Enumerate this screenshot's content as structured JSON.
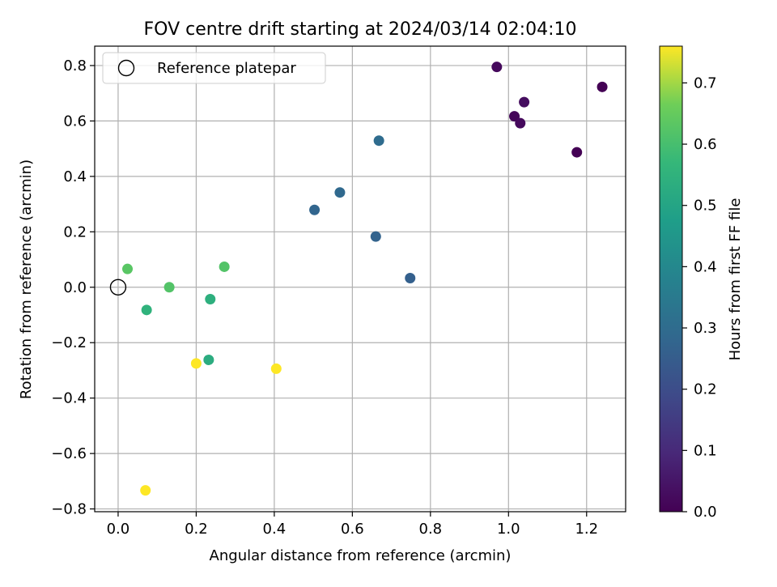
{
  "chart_data": {
    "type": "scatter",
    "title": "FOV centre drift starting at 2024/03/14 02:04:10",
    "xlabel": "Angular distance from reference (arcmin)",
    "ylabel": "Rotation from reference (arcmin)",
    "xlim": [
      -0.06,
      1.3
    ],
    "ylim": [
      -0.81,
      0.87
    ],
    "x_ticks": [
      0.0,
      0.2,
      0.4,
      0.6,
      0.8,
      1.0,
      1.2
    ],
    "x_tick_labels": [
      "0.0",
      "0.2",
      "0.4",
      "0.6",
      "0.8",
      "1.0",
      "1.2"
    ],
    "y_ticks": [
      0.8,
      0.6,
      0.4,
      0.2,
      0.0,
      -0.2,
      -0.4,
      -0.6,
      -0.8
    ],
    "y_tick_labels": [
      "0.8",
      "0.6",
      "0.4",
      "0.2",
      "0.0",
      "−0.2",
      "−0.4",
      "−0.6",
      "−0.8"
    ],
    "grid": true,
    "legend": {
      "position": "top-left",
      "entries": [
        "Reference platepar"
      ]
    },
    "reference_point": {
      "x": 0.0,
      "y": 0.0
    },
    "colorbar": {
      "label": "Hours from first FF file",
      "range": [
        0.0,
        0.76
      ],
      "ticks": [
        0.0,
        0.1,
        0.2,
        0.3,
        0.4,
        0.5,
        0.6,
        0.7
      ],
      "tick_labels": [
        "0.0",
        "0.1",
        "0.2",
        "0.3",
        "0.4",
        "0.5",
        "0.6",
        "0.7"
      ],
      "colormap": "viridis"
    },
    "points": [
      {
        "x": 0.97,
        "y": 0.795,
        "c": 0.02
      },
      {
        "x": 1.24,
        "y": 0.723,
        "c": 0.0
      },
      {
        "x": 1.04,
        "y": 0.668,
        "c": 0.03
      },
      {
        "x": 1.015,
        "y": 0.617,
        "c": 0.01
      },
      {
        "x": 1.03,
        "y": 0.592,
        "c": 0.02
      },
      {
        "x": 1.175,
        "y": 0.487,
        "c": 0.0
      },
      {
        "x": 0.668,
        "y": 0.529,
        "c": 0.3
      },
      {
        "x": 0.568,
        "y": 0.342,
        "c": 0.29
      },
      {
        "x": 0.503,
        "y": 0.279,
        "c": 0.28
      },
      {
        "x": 0.66,
        "y": 0.183,
        "c": 0.27
      },
      {
        "x": 0.748,
        "y": 0.033,
        "c": 0.26
      },
      {
        "x": 0.024,
        "y": 0.066,
        "c": 0.63
      },
      {
        "x": 0.272,
        "y": 0.074,
        "c": 0.62
      },
      {
        "x": 0.131,
        "y": 0.0,
        "c": 0.62
      },
      {
        "x": 0.073,
        "y": -0.082,
        "c": 0.55
      },
      {
        "x": 0.236,
        "y": -0.043,
        "c": 0.54
      },
      {
        "x": 0.232,
        "y": -0.262,
        "c": 0.53
      },
      {
        "x": 0.2,
        "y": -0.275,
        "c": 0.76
      },
      {
        "x": 0.405,
        "y": -0.294,
        "c": 0.76
      },
      {
        "x": 0.07,
        "y": -0.733,
        "c": 0.76
      }
    ]
  }
}
